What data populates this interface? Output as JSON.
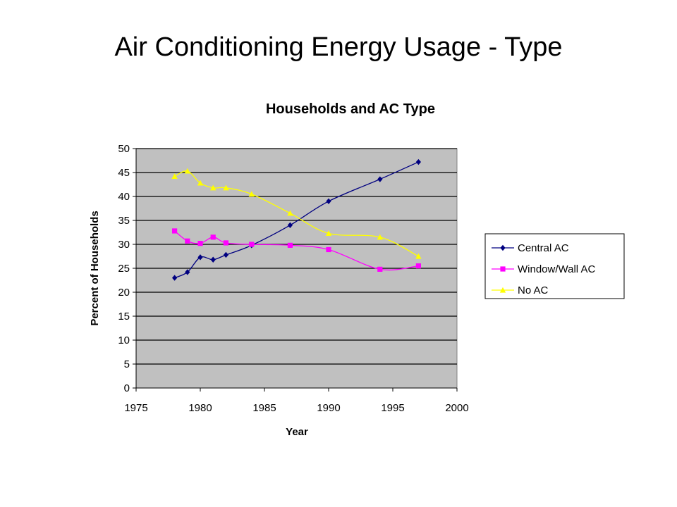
{
  "slide": {
    "title": "Air Conditioning Energy Usage - Type"
  },
  "chart_data": {
    "type": "line",
    "title": "Households and AC Type",
    "xlabel": "Year",
    "ylabel": "Percent of Households",
    "xlim": [
      1975,
      2000
    ],
    "ylim": [
      0,
      50
    ],
    "xticks": [
      1975,
      1980,
      1985,
      1990,
      1995,
      2000
    ],
    "yticks": [
      0,
      5,
      10,
      15,
      20,
      25,
      30,
      35,
      40,
      45,
      50
    ],
    "grid": true,
    "legend_position": "right",
    "plot_background": "#c0c0c0",
    "series": [
      {
        "name": "Central AC",
        "color": "#000080",
        "marker": "diamond",
        "x": [
          1978,
          1979,
          1980,
          1981,
          1982,
          1984,
          1987,
          1990,
          1994,
          1997
        ],
        "y": [
          23,
          24.2,
          27.3,
          26.8,
          27.8,
          29.8,
          34,
          39,
          43.6,
          47.2
        ]
      },
      {
        "name": "Window/Wall AC",
        "color": "#ff00ff",
        "marker": "square",
        "x": [
          1978,
          1979,
          1980,
          1981,
          1982,
          1984,
          1987,
          1990,
          1994,
          1997
        ],
        "y": [
          32.8,
          30.7,
          30.2,
          31.5,
          30.3,
          30,
          29.8,
          28.9,
          24.8,
          25.5
        ]
      },
      {
        "name": "No AC",
        "color": "#ffff00",
        "marker": "triangle",
        "x": [
          1978,
          1979,
          1980,
          1981,
          1982,
          1984,
          1987,
          1990,
          1994,
          1997
        ],
        "y": [
          44.2,
          45.3,
          42.8,
          41.8,
          41.8,
          40.5,
          36.5,
          32.3,
          31.5,
          27.5
        ]
      }
    ]
  }
}
